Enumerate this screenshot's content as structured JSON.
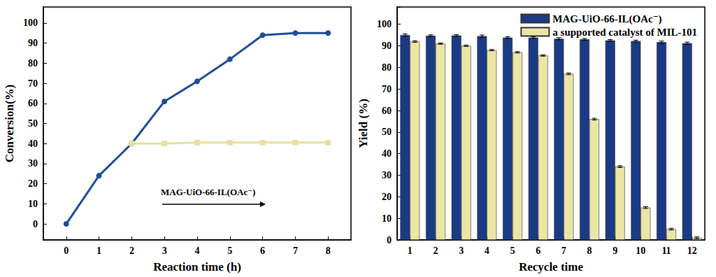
{
  "chart_data": [
    {
      "type": "line",
      "x_label": "Reaction time (h)",
      "y_label": "Conversion(%)",
      "xlim": [
        -0.7,
        8.7
      ],
      "xticks": [
        0,
        1,
        2,
        3,
        4,
        5,
        6,
        7,
        8
      ],
      "ylim": [
        -8,
        108
      ],
      "yticks": [
        0,
        10,
        20,
        30,
        40,
        50,
        60,
        70,
        80,
        90,
        100
      ],
      "grid": false,
      "annotations": [
        "MAG-UiO-66-IL(OAc⁻)"
      ],
      "series": [
        {
          "color": "#1f4e9a",
          "marker": "circle",
          "line_style": "solid",
          "x": [
            0,
            1,
            2,
            3,
            4,
            5,
            6,
            7,
            8
          ],
          "values": [
            0,
            24,
            40,
            61,
            71,
            82,
            94,
            95,
            95
          ]
        },
        {
          "color": "#e6e0a2",
          "marker": "square",
          "line_style": "solid",
          "x": [
            2,
            3,
            4,
            5,
            6,
            7,
            8
          ],
          "values": [
            40,
            40,
            40.5,
            40.5,
            40.5,
            40.5,
            40.5
          ]
        }
      ]
    },
    {
      "type": "bar",
      "x_label": "Recycle time",
      "y_label": "Yield (%)",
      "categories": [
        "1",
        "2",
        "3",
        "4",
        "5",
        "6",
        "7",
        "8",
        "9",
        "10",
        "11",
        "12"
      ],
      "ylim": [
        0,
        108
      ],
      "yticks": [
        0,
        10,
        20,
        30,
        40,
        50,
        60,
        70,
        80,
        90,
        100
      ],
      "grid": false,
      "legend": "upper right",
      "series": [
        {
          "name": "MAG-UiO-66-IL(OAc⁻)",
          "color": "#1b3a86",
          "values": [
            95,
            94.7,
            94.8,
            94.5,
            93.8,
            93.8,
            93.3,
            93,
            92.5,
            92.2,
            91.7,
            91.2
          ],
          "errors": [
            0.5,
            0.4,
            0.4,
            0.5,
            0.4,
            0.4,
            0.5,
            0.4,
            0.4,
            0.4,
            0.5,
            0.5
          ]
        },
        {
          "name": "a supported catalyst of MIL-101",
          "color": "#ebe6a6",
          "values": [
            92,
            91,
            90,
            88,
            87,
            85.5,
            77,
            56,
            34,
            15,
            5,
            1
          ],
          "errors": [
            0.4,
            0.3,
            0.3,
            0.3,
            0.3,
            0.3,
            0.4,
            0.4,
            0.4,
            0.4,
            0.4,
            0.4
          ]
        }
      ]
    }
  ]
}
